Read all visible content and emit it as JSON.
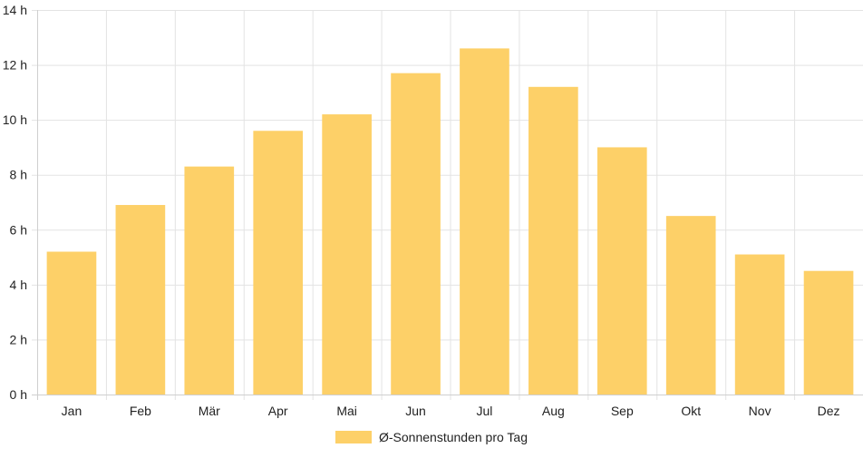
{
  "chart_data": {
    "type": "bar",
    "categories": [
      "Jan",
      "Feb",
      "Mär",
      "Apr",
      "Mai",
      "Jun",
      "Jul",
      "Aug",
      "Sep",
      "Okt",
      "Nov",
      "Dez"
    ],
    "series": [
      {
        "name": "Ø-Sonnenstunden pro Tag",
        "values": [
          5.2,
          6.9,
          8.3,
          9.6,
          10.2,
          11.7,
          12.6,
          11.2,
          9.0,
          6.5,
          5.1,
          4.5
        ],
        "color": "#fdd068"
      }
    ],
    "ylim": [
      0,
      14
    ],
    "yticks": [
      0,
      2,
      4,
      6,
      8,
      10,
      12,
      14
    ],
    "ytick_suffix": " h",
    "grid": true,
    "legend_position": "bottom"
  }
}
